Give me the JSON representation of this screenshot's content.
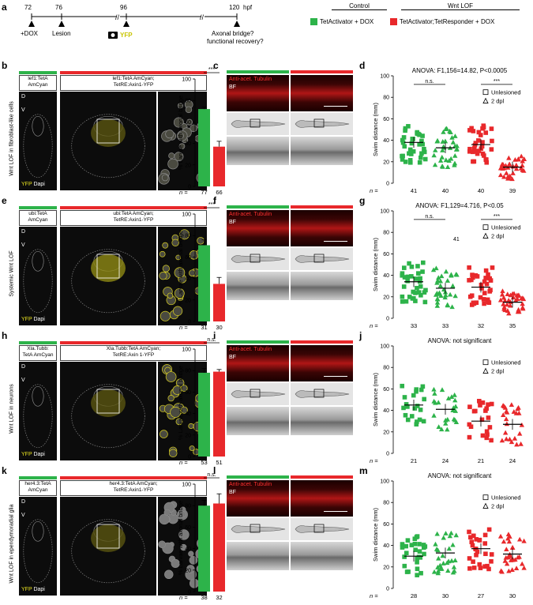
{
  "panel_letters": [
    "a",
    "b",
    "c",
    "d",
    "e",
    "f",
    "g",
    "h",
    "i",
    "j",
    "k",
    "l",
    "m"
  ],
  "timeline": {
    "times": [
      "72",
      "76",
      "96",
      "120"
    ],
    "unit": "hpf",
    "events": [
      "+DOX",
      "Lesion",
      "YFP",
      "Axonal bridge?",
      "functional recovery?"
    ]
  },
  "legend": {
    "control_header": "Control",
    "lof_header": "Wnt LOF",
    "control_label": "TetActivator + DOX",
    "lof_label": "TetActivator;TetResponder + DOX",
    "control_color": "#2db34a",
    "lof_color": "#e8282b"
  },
  "rows": [
    {
      "side_label": "Wnt LOF in fibroblast-like cells",
      "ctrl_header": [
        "lef1:TetA",
        "AmCyan"
      ],
      "lof_header": [
        "lef1:TetA AmCyan;",
        "TetRE:Axin1-YFP"
      ],
      "bar": {
        "ylabel": "% Larvae with axonal bridge",
        "sig": "***",
        "n_prefix": "n =",
        "n": [
          "77",
          "66"
        ],
        "values": [
          72,
          37
        ],
        "errors": [
          2,
          5
        ]
      },
      "img_labels": [
        "Anti-acet. Tubulin",
        "BF"
      ],
      "swim": {
        "title": "ANOVA: F1,156=14.82, P<0.0005",
        "sig_left": "n.s.",
        "sig_right": "***",
        "ylabel": "Swim distance (mm)",
        "yticks": [
          "0",
          "20",
          "40",
          "60",
          "80",
          "100"
        ],
        "n_prefix": "n =",
        "n": [
          "41",
          "40",
          "40",
          "39"
        ],
        "means": [
          38,
          33,
          36,
          15
        ]
      }
    },
    {
      "side_label": "Systemic Wnt LOF",
      "ctrl_header": [
        "ubi:TetA",
        "AmCyan"
      ],
      "lof_header": [
        "ubi:TetA AmCyan;",
        "TetRE:Axin1-YFP"
      ],
      "bar": {
        "ylabel": "% Larvae with axonal bridge",
        "sig": "***",
        "n_prefix": "n =",
        "n": [
          "31",
          "30"
        ],
        "values": [
          71,
          35
        ],
        "errors": [
          5,
          6
        ]
      },
      "img_labels": [
        "Anti-acet. Tubulin",
        "BF"
      ],
      "swim": {
        "title": "ANOVA: F1,129=4.716, P<0.05",
        "sig_left": "n.s.",
        "sig_right": "***",
        "ylabel": "Swim distance (mm)",
        "yticks": [
          "0",
          "20",
          "40",
          "60",
          "80",
          "100"
        ],
        "n_prefix": "n =",
        "n": [
          "33",
          "33",
          "32",
          "35"
        ],
        "means": [
          34,
          28,
          29,
          15
        ],
        "annot": "41"
      }
    },
    {
      "side_label": "Wnt LOF in neurons",
      "ctrl_header": [
        "Xla.Tubb:",
        "TetA AmCyan"
      ],
      "lof_header": [
        "Xla.Tubb:TetA AmCyan;",
        "TetRE:Axin 1-YFP"
      ],
      "bar": {
        "ylabel": "% Larvae with axonal bridge",
        "sig": "n.s.",
        "n_prefix": "n =",
        "n": [
          "53",
          "51"
        ],
        "values": [
          78,
          79
        ],
        "errors": [
          4,
          2
        ]
      },
      "img_labels": [
        "Anti-acet. Tubulin",
        "BF"
      ],
      "swim": {
        "title": "ANOVA: not significant",
        "ylabel": "Swim distance (mm)",
        "yticks": [
          "0",
          "20",
          "40",
          "60",
          "80",
          "100"
        ],
        "n_prefix": "n =",
        "n": [
          "21",
          "24",
          "21",
          "24"
        ],
        "means": [
          45,
          41,
          30,
          27
        ]
      }
    },
    {
      "side_label": "Wnt LOF in ependymoradial glia",
      "ctrl_header": [
        "her4.3:TetA",
        "AmCyan"
      ],
      "lof_header": [
        "her4.3:TetA AmCyan;",
        "TetRE:Axin1-YFP"
      ],
      "bar": {
        "ylabel": "% Larvae with axonal bridge",
        "sig": "n.s.",
        "n_prefix": "n =",
        "n": [
          "38",
          "32"
        ],
        "values": [
          80,
          82
        ],
        "errors": [
          5,
          9
        ]
      },
      "img_labels": [
        "Anti-acet. Tubulin",
        "BF"
      ],
      "swim": {
        "title": "ANOVA: not significant",
        "ylabel": "Swim distance (mm)",
        "yticks": [
          "0",
          "20",
          "40",
          "60",
          "80",
          "100"
        ],
        "n_prefix": "n =",
        "n": [
          "28",
          "30",
          "27",
          "30"
        ],
        "means": [
          30,
          33,
          37,
          32
        ]
      }
    }
  ],
  "swim_legend": [
    "Unlesioned",
    "2 dpl"
  ],
  "bar_yticks": [
    "0",
    "20",
    "40",
    "60",
    "80",
    "100"
  ],
  "micro_labels": {
    "d": "D",
    "v": "V",
    "yfp": "YFP",
    "dapi": "Dapi"
  },
  "colors": {
    "yfp": "#e6e020",
    "green": "#2db34a",
    "red": "#e8282b"
  }
}
